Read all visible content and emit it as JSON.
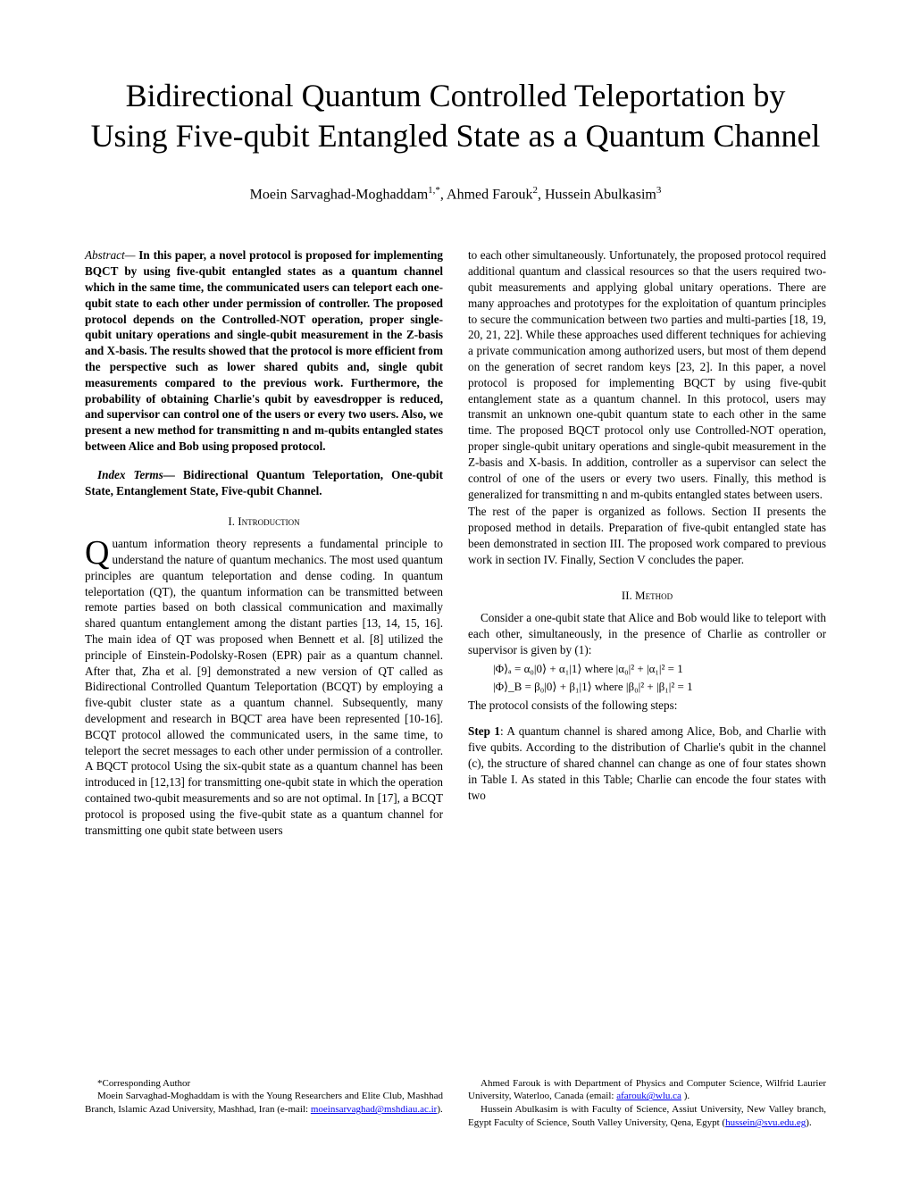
{
  "title": "Bidirectional Quantum Controlled Teleportation by Using Five-qubit Entangled State as a Quantum Channel",
  "authors_html": "Moein Sarvaghad-Moghaddam<sup>1,*</sup>, Ahmed Farouk<sup>2</sup>, Hussein Abulkasim<sup>3</sup>",
  "abstract": {
    "label": "Abstract—",
    "body": "In this paper, a novel protocol is proposed for implementing BQCT by using five-qubit entangled states as a quantum channel which in the same time, the communicated users can teleport each one-qubit state to each other under permission of controller. The proposed protocol depends on the Controlled-NOT operation, proper single-qubit unitary operations and single-qubit measurement in the Z-basis and X-basis. The results showed that the protocol is more efficient from the perspective such as lower shared qubits and, single qubit measurements compared to the previous work. Furthermore, the probability of obtaining Charlie's qubit by eavesdropper is reduced, and supervisor can control one of the users or every two users. Also, we present a new method for transmitting n and m-qubits entangled states between Alice and Bob using proposed protocol."
  },
  "index_terms": {
    "label": "Index Terms—",
    "body": "Bidirectional Quantum Teleportation, One-qubit State, Entanglement State, Five-qubit Channel."
  },
  "section1": {
    "heading": "I.   Introduction",
    "dropcap": "Q",
    "body": "uantum information theory represents a fundamental principle to understand the nature of quantum mechanics. The most used quantum principles are quantum teleportation and dense coding.  In quantum teleportation (QT), the quantum information can be transmitted between remote parties based on both classical communication and maximally shared quantum entanglement among the distant parties [13, 14, 15, 16]. The main idea of QT was proposed when Bennett et al. [8] utilized the principle of Einstein-Podolsky-Rosen (EPR) pair as a quantum channel. After that, Zha et al. [9] demonstrated a new version of QT called as Bidirectional Controlled Quantum Teleportation (BCQT) by employing a five-qubit cluster state as a quantum channel. Subsequently, many development and research in BQCT area have been represented [10-16].  BCQT protocol allowed the communicated users, in the same time, to teleport the secret messages to each other under permission of a controller. A BQCT protocol Using the six-qubit state as a quantum channel has been introduced in [12,13] for transmitting one-qubit state in which the operation contained two-qubit measurements and so are not optimal. In [17], a BCQT protocol is proposed using the five-qubit state as a quantum channel for transmitting one qubit state between users"
  },
  "col2": {
    "p1": "to each other simultaneously. Unfortunately, the proposed protocol required additional quantum and classical resources so that the users required two-qubit measurements and applying global unitary operations.  There are many approaches and prototypes for the exploitation of quantum principles to secure the communication between two parties and multi-parties [18, 19, 20, 21, 22]. While these approaches used different techniques for achieving a private communication among authorized users, but most of them depend on the generation of secret random keys [23, 2]. In this paper, a novel protocol is proposed for implementing BQCT by using five-qubit entanglement state as a quantum channel. In this protocol, users may transmit an unknown one-qubit quantum state to each other in the same time. The proposed BQCT protocol only use Controlled-NOT operation, proper single-qubit unitary operations and single-qubit measurement in the Z-basis and X-basis. In addition, controller as a supervisor can select the control of one of the users or every two users. Finally, this method is generalized for transmitting n and m-qubits entangled states between users.",
    "p2": "The rest of the paper is organized as follows. Section II presents the proposed method in details.  Preparation of five-qubit entangled state has been demonstrated in section III. The proposed work compared to previous work in section IV. Finally, Section V concludes the paper."
  },
  "section2": {
    "heading": "II.   Method",
    "intro": "Consider a one-qubit state that Alice and Bob would like to teleport with each other, simultaneously, in the presence of Charlie as controller or supervisor is given by (1):",
    "eq1": "|Φ⟩ₐ = α₀|0⟩ + α₁|1⟩        where  |α₀|² + |α₁|² = 1",
    "eq2": "|Φ⟩_B = β₀|0⟩ + β₁|1⟩        where  |β₀|² + |β₁|² = 1",
    "steps_intro": "The protocol consists of the following steps:",
    "step1_label": "Step 1",
    "step1_body": ": A quantum channel is shared among Alice, Bob, and Charlie with five qubits. According to the distribution of Charlie's qubit in the channel (c), the structure of shared channel can change as one of four states shown in Table I. As stated in this Table; Charlie can encode the four states with two"
  },
  "footnotes": {
    "left_p1": "*Corresponding Author",
    "left_p2_pre": "Moein Sarvaghad-Moghaddam is with the Young Researchers and Elite Club, Mashhad Branch, Islamic Azad University, Mashhad, Iran (e-mail: ",
    "left_email": "moeinsarvaghad@mshdiau.ac.ir",
    "left_p2_post": ").",
    "right_p1_pre": "Ahmed Farouk is with Department of Physics and Computer Science, Wilfrid Laurier University, Waterloo, Canada (email: ",
    "right_email1": "afarouk@wlu.ca",
    "right_p1_post": " ).",
    "right_p2_pre": "Hussein Abulkasim is with Faculty of Science, Assiut University, New Valley branch, Egypt Faculty of Science, South Valley University, Qena, Egypt (",
    "right_email2": "hussein@svu.edu.eg",
    "right_p2_post": ")."
  }
}
